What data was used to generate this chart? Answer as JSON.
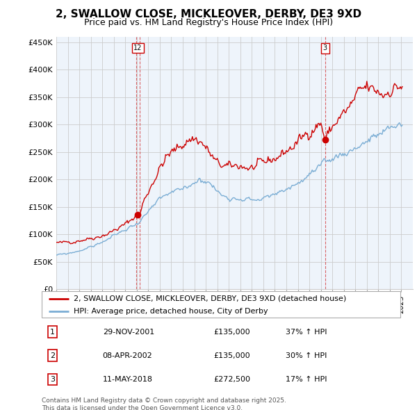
{
  "title": "2, SWALLOW CLOSE, MICKLEOVER, DERBY, DE3 9XD",
  "subtitle": "Price paid vs. HM Land Registry's House Price Index (HPI)",
  "legend_line1": "2, SWALLOW CLOSE, MICKLEOVER, DERBY, DE3 9XD (detached house)",
  "legend_line2": "HPI: Average price, detached house, City of Derby",
  "footer1": "Contains HM Land Registry data © Crown copyright and database right 2025.",
  "footer2": "This data is licensed under the Open Government Licence v3.0.",
  "ylabel_ticks": [
    "£0",
    "£50K",
    "£100K",
    "£150K",
    "£200K",
    "£250K",
    "£300K",
    "£350K",
    "£400K",
    "£450K"
  ],
  "ytick_values": [
    0,
    50000,
    100000,
    150000,
    200000,
    250000,
    300000,
    350000,
    400000,
    450000
  ],
  "ylim": [
    0,
    460000
  ],
  "xlim": [
    1995,
    2026
  ],
  "sales": [
    {
      "num": "1",
      "date_label": "29-NOV-2001",
      "price": "£135,000",
      "pct": "37% ↑ HPI",
      "date_x": 2001.92
    },
    {
      "num": "2",
      "date_label": "08-APR-2002",
      "price": "£135,000",
      "pct": "30% ↑ HPI",
      "date_x": 2002.28
    },
    {
      "num": "3",
      "date_label": "11-MAY-2018",
      "price": "£272,500",
      "pct": "17% ↑ HPI",
      "date_x": 2018.37
    }
  ],
  "property_color": "#cc0000",
  "hpi_color": "#7aadd4",
  "vline_color": "#cc0000",
  "chart_bg": "#eef4fb",
  "background_color": "#ffffff",
  "grid_color": "#cccccc",
  "sale1_dot_x": 2002.1,
  "sale1_dot_y": 135000,
  "sale3_dot_x": 2018.37,
  "sale3_dot_y": 272500,
  "prop_key_years": [
    1995.0,
    1995.5,
    1996.0,
    1996.5,
    1997.0,
    1997.5,
    1998.0,
    1998.5,
    1999.0,
    1999.5,
    2000.0,
    2000.5,
    2001.0,
    2001.5,
    2001.92,
    2002.28,
    2002.5,
    2003.0,
    2003.5,
    2004.0,
    2004.5,
    2005.0,
    2005.5,
    2006.0,
    2006.5,
    2007.0,
    2007.5,
    2008.0,
    2008.5,
    2009.0,
    2009.5,
    2010.0,
    2010.5,
    2011.0,
    2011.5,
    2012.0,
    2012.5,
    2013.0,
    2013.5,
    2014.0,
    2014.5,
    2015.0,
    2015.5,
    2016.0,
    2016.5,
    2017.0,
    2017.5,
    2018.0,
    2018.37,
    2018.5,
    2019.0,
    2019.5,
    2020.0,
    2020.5,
    2021.0,
    2021.5,
    2022.0,
    2022.5,
    2023.0,
    2023.5,
    2024.0,
    2024.5,
    2025.0
  ],
  "prop_key_vals": [
    85000,
    84000,
    86000,
    87000,
    89000,
    91000,
    93000,
    95000,
    98000,
    101000,
    107000,
    112000,
    118000,
    126000,
    135000,
    135000,
    155000,
    178000,
    200000,
    220000,
    238000,
    248000,
    255000,
    265000,
    272000,
    275000,
    270000,
    258000,
    242000,
    228000,
    225000,
    222000,
    224000,
    226000,
    222000,
    220000,
    224000,
    228000,
    235000,
    238000,
    245000,
    252000,
    258000,
    268000,
    278000,
    288000,
    296000,
    303000,
    272500,
    278000,
    295000,
    310000,
    320000,
    330000,
    348000,
    360000,
    368000,
    362000,
    360000,
    355000,
    365000,
    368000,
    370000
  ],
  "hpi_key_years": [
    1995.0,
    1995.5,
    1996.0,
    1996.5,
    1997.0,
    1997.5,
    1998.0,
    1998.5,
    1999.0,
    1999.5,
    2000.0,
    2000.5,
    2001.0,
    2001.5,
    2002.0,
    2002.5,
    2003.0,
    2003.5,
    2004.0,
    2004.5,
    2005.0,
    2005.5,
    2006.0,
    2006.5,
    2007.0,
    2007.5,
    2008.0,
    2008.5,
    2009.0,
    2009.5,
    2010.0,
    2010.5,
    2011.0,
    2011.5,
    2012.0,
    2012.5,
    2013.0,
    2013.5,
    2014.0,
    2014.5,
    2015.0,
    2015.5,
    2016.0,
    2016.5,
    2017.0,
    2017.5,
    2018.0,
    2018.5,
    2019.0,
    2019.5,
    2020.0,
    2020.5,
    2021.0,
    2021.5,
    2022.0,
    2022.5,
    2023.0,
    2023.5,
    2024.0,
    2024.5,
    2025.0
  ],
  "hpi_key_vals": [
    62000,
    63000,
    65000,
    67000,
    70000,
    73000,
    77000,
    81000,
    86000,
    91000,
    97000,
    103000,
    108000,
    114000,
    119000,
    130000,
    140000,
    152000,
    162000,
    170000,
    175000,
    178000,
    182000,
    188000,
    196000,
    200000,
    198000,
    190000,
    178000,
    170000,
    168000,
    166000,
    166000,
    165000,
    163000,
    163000,
    165000,
    168000,
    172000,
    177000,
    183000,
    188000,
    193000,
    200000,
    208000,
    215000,
    222000,
    230000,
    238000,
    244000,
    248000,
    252000,
    258000,
    264000,
    270000,
    275000,
    280000,
    285000,
    292000,
    298000,
    302000
  ]
}
